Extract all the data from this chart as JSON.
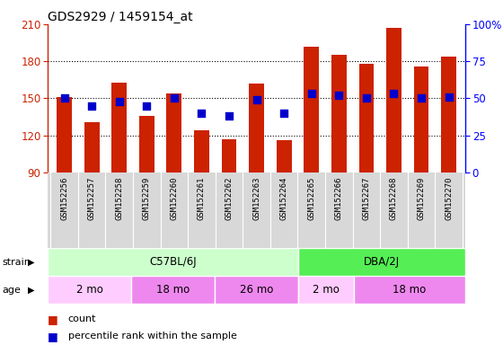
{
  "title": "GDS2929 / 1459154_at",
  "samples": [
    "GSM152256",
    "GSM152257",
    "GSM152258",
    "GSM152259",
    "GSM152260",
    "GSM152261",
    "GSM152262",
    "GSM152263",
    "GSM152264",
    "GSM152265",
    "GSM152266",
    "GSM152267",
    "GSM152268",
    "GSM152269",
    "GSM152270"
  ],
  "counts": [
    151,
    131,
    163,
    136,
    154,
    124,
    117,
    162,
    116,
    192,
    185,
    178,
    207,
    176,
    184
  ],
  "percentile_ranks": [
    50,
    45,
    48,
    45,
    50,
    40,
    38,
    49,
    40,
    53,
    52,
    50,
    53,
    50,
    51
  ],
  "ylim_left": [
    90,
    210
  ],
  "ylim_right": [
    0,
    100
  ],
  "yticks_left": [
    90,
    120,
    150,
    180,
    210
  ],
  "yticks_right": [
    0,
    25,
    50,
    75,
    100
  ],
  "yright_labels": [
    "0",
    "25",
    "50",
    "75",
    "100%"
  ],
  "grid_lines": [
    120,
    150,
    180
  ],
  "bar_color": "#cc2200",
  "dot_color": "#0000cc",
  "plot_bg_color": "#ffffff",
  "label_area_bg": "#d8d8d8",
  "strain_groups": [
    {
      "label": "C57BL/6J",
      "start": 0,
      "end": 9,
      "color": "#ccffcc"
    },
    {
      "label": "DBA/2J",
      "start": 9,
      "end": 15,
      "color": "#55ee55"
    }
  ],
  "age_groups": [
    {
      "label": "2 mo",
      "start": 0,
      "end": 3,
      "color": "#ffccff"
    },
    {
      "label": "18 mo",
      "start": 3,
      "end": 6,
      "color": "#ee88ee"
    },
    {
      "label": "26 mo",
      "start": 6,
      "end": 9,
      "color": "#ee88ee"
    },
    {
      "label": "2 mo",
      "start": 9,
      "end": 11,
      "color": "#ffccff"
    },
    {
      "label": "18 mo",
      "start": 11,
      "end": 15,
      "color": "#ee88ee"
    }
  ],
  "strain_label": "strain",
  "age_label": "age",
  "legend_count_label": "count",
  "legend_pct_label": "percentile rank within the sample",
  "bar_width": 0.55,
  "dot_size": 35
}
